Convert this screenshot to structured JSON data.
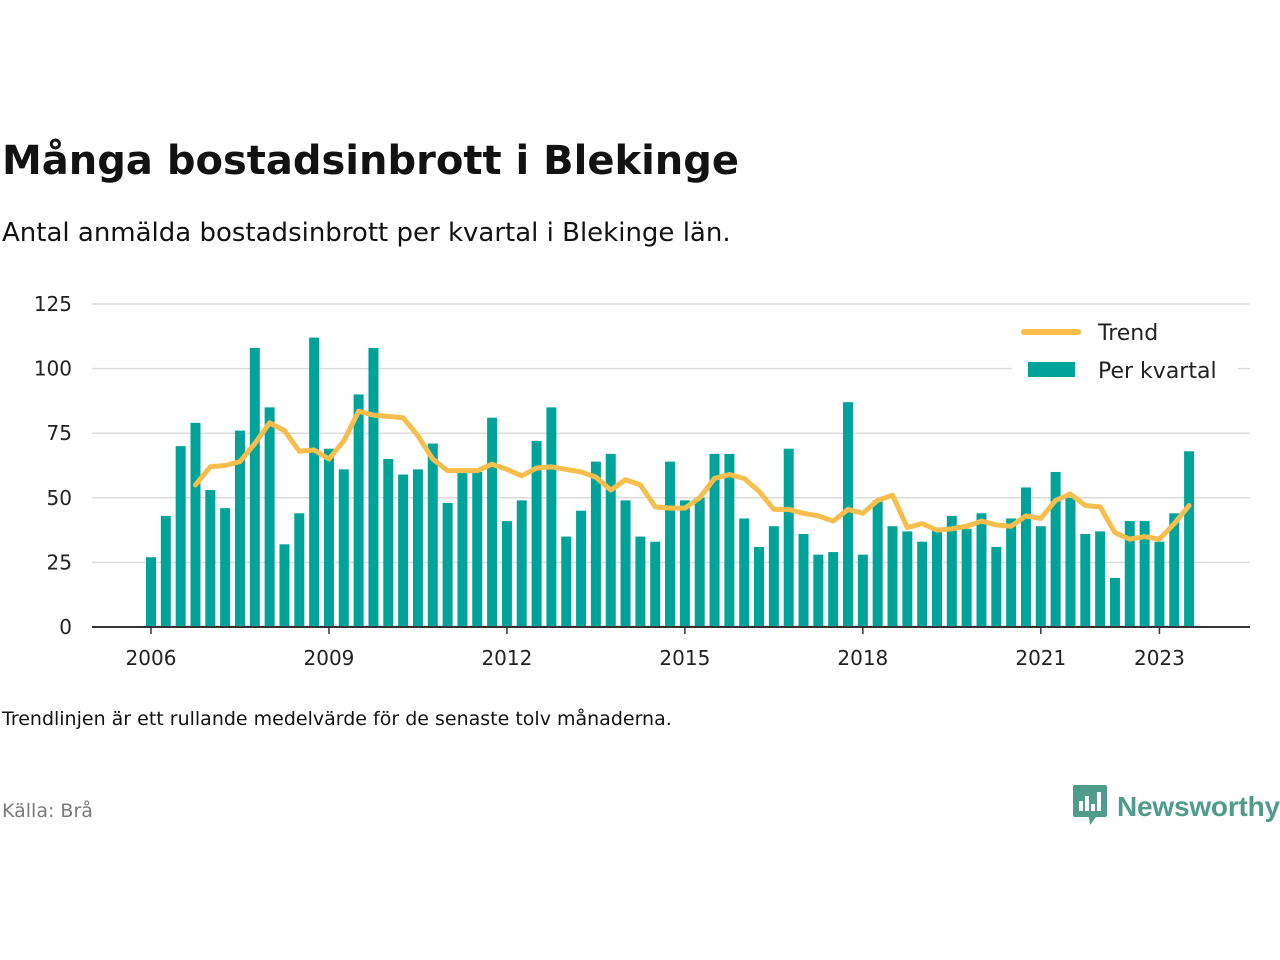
{
  "title": "Många bostadsinbrott i Blekinge",
  "subtitle": "Antal anmälda bostadsinbrott per kvartal i Blekinge län.",
  "note": "Trendlinjen är ett rullande medelvärde för de senaste tolv månaderna.",
  "source": "Källa: Brå",
  "logo": {
    "text": "Newsworthy",
    "icon": "newsworthy-chart-bubble-icon",
    "color": "#4f9c8a"
  },
  "colors": {
    "bar": "#00a39a",
    "trend": "#f7be4d",
    "grid": "#dcdcdc",
    "axis": "#333333"
  },
  "chart_data": {
    "type": "bar",
    "title": "Många bostadsinbrott i Blekinge",
    "ylim": [
      0,
      125
    ],
    "yticks": [
      0,
      25,
      50,
      75,
      100,
      125
    ],
    "xticks": [
      {
        "label": "2006",
        "x": 2006.0
      },
      {
        "label": "2009",
        "x": 2009.0
      },
      {
        "label": "2012",
        "x": 2012.0
      },
      {
        "label": "2015",
        "x": 2015.0
      },
      {
        "label": "2018",
        "x": 2018.0
      },
      {
        "label": "2021",
        "x": 2021.0
      },
      {
        "label": "2023",
        "x": 2023.0
      }
    ],
    "grid": true,
    "legend_position": "top-right",
    "legend": [
      "Trend",
      "Per kvartal"
    ],
    "series": [
      {
        "name": "Per kvartal",
        "kind": "bar",
        "values": [
          27,
          43,
          70,
          79,
          53,
          46,
          76,
          108,
          85,
          32,
          44,
          112,
          69,
          61,
          90,
          108,
          65,
          59,
          61,
          71,
          48,
          60,
          60,
          81,
          41,
          49,
          72,
          85,
          35,
          45,
          64,
          67,
          49,
          35,
          33,
          64,
          49,
          50,
          67,
          67,
          42,
          31,
          39,
          69,
          36,
          28,
          29,
          87,
          28,
          49,
          39,
          37,
          33,
          38,
          43,
          38,
          44,
          31,
          42,
          54,
          39,
          60,
          50,
          36,
          37,
          19,
          41,
          41,
          33,
          44,
          68
        ]
      },
      {
        "name": "Trend",
        "kind": "line",
        "values": [
          null,
          null,
          null,
          55,
          62,
          62.5,
          64,
          71,
          79,
          76,
          68,
          68.5,
          65,
          72,
          83.5,
          82,
          81.5,
          81,
          74,
          65,
          60.5,
          60.5,
          60.5,
          63,
          61,
          58.5,
          61.5,
          62,
          61,
          60,
          58,
          53,
          57,
          55,
          46.5,
          46,
          46,
          50,
          57.5,
          59,
          57.5,
          52.5,
          45.5,
          45.5,
          44,
          43,
          41,
          45.5,
          44,
          49,
          51,
          38.5,
          40,
          37.5,
          38,
          39,
          41,
          39.5,
          39,
          43,
          42,
          49,
          51.5,
          47,
          46.5,
          36.5,
          34,
          35,
          34,
          40,
          47
        ]
      }
    ]
  }
}
